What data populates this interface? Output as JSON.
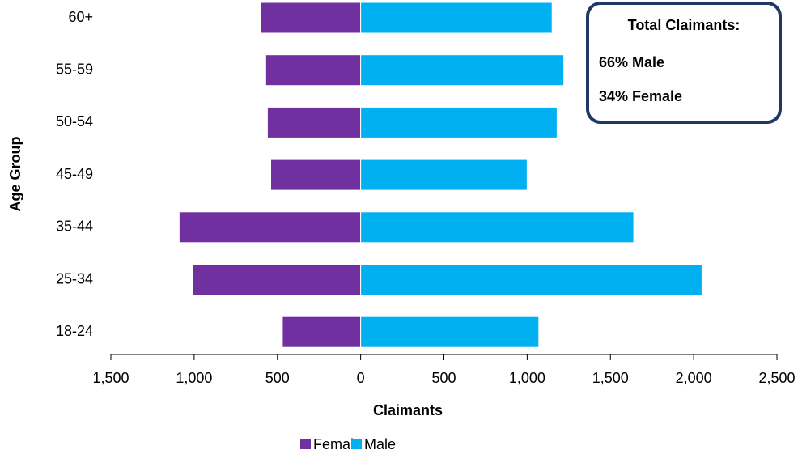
{
  "chart_data": {
    "type": "bar",
    "orientation": "horizontal",
    "categories": [
      "60+",
      "55-59",
      "50-54",
      "45-49",
      "35-44",
      "25-34",
      "18-24"
    ],
    "series": [
      {
        "name": "Female",
        "color": "#7030a0",
        "values": [
          -600,
          -570,
          -560,
          -540,
          -1090,
          -1010,
          -470
        ]
      },
      {
        "name": "Male",
        "color": "#00b0f0",
        "values": [
          1150,
          1220,
          1180,
          1000,
          1640,
          2050,
          1070
        ]
      }
    ],
    "xlim": [
      -1500,
      2500
    ],
    "xticks": [
      {
        "value": -1500,
        "label": "1,500"
      },
      {
        "value": -1000,
        "label": "1,000"
      },
      {
        "value": -500,
        "label": "500"
      },
      0,
      500,
      {
        "value": 1000,
        "label": "1,000"
      },
      {
        "value": 1500,
        "label": "1,500"
      },
      {
        "value": 2000,
        "label": "2,000"
      },
      {
        "value": 2500,
        "label": "2,500"
      }
    ],
    "x_label": "Claimants",
    "y_label": "Age Group",
    "legend": "bottom",
    "annotation": {
      "title": "Total Claimants:",
      "lines": [
        {
          "text": "66% Male",
          "color": "#00b0f0"
        },
        {
          "text": "34% Female",
          "color": "#7030a0"
        }
      ],
      "border_color": "#1f3864"
    }
  }
}
